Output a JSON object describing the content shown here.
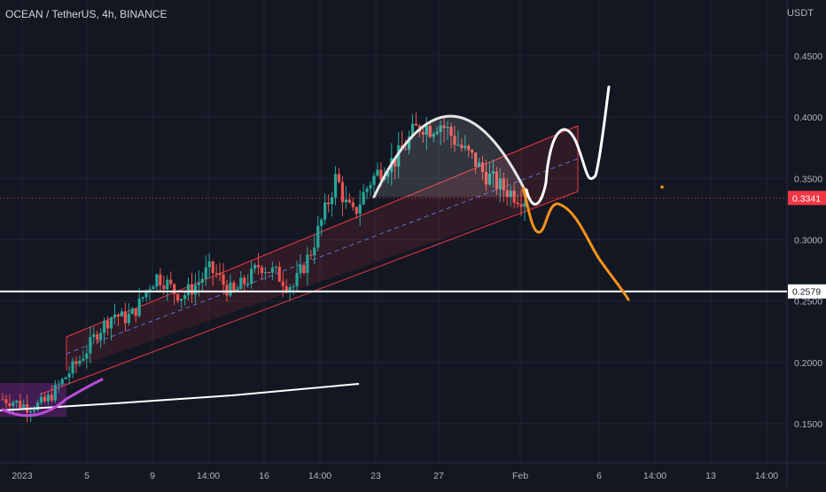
{
  "header": {
    "title": "OCEAN / TetherUS, 4h, BINANCE",
    "unit": "USDT"
  },
  "colors": {
    "background": "#131722",
    "grid": "#1f2433",
    "up_candle": "#26a69a",
    "down_candle": "#ef5350",
    "channel": "#f23645",
    "channel_mid": "#5b6ee1",
    "projection_bull": "#ffffff",
    "projection_bear": "#f7931a",
    "price_tag": "#f23645",
    "support_line": "#ffffff"
  },
  "chart_data": {
    "type": "candlestick",
    "symbol": "OCEAN / TetherUS",
    "interval": "4h",
    "exchange": "BINANCE",
    "ylim": [
      0.138,
      0.46
    ],
    "y_ticks": [
      "0.4500",
      "0.4000",
      "0.3500",
      "0.3000",
      "0.2500",
      "0.2000",
      "0.1500"
    ],
    "x_ticks": [
      "2023",
      "5",
      "9",
      "14:00",
      "16",
      "14:00",
      "23",
      "27",
      "Feb",
      "6",
      "14:00",
      "13",
      "14:00"
    ],
    "grid": true,
    "last_price": "0.3341",
    "support_level": "0.2579",
    "trend_path": [
      0.17,
      0.169,
      0.166,
      0.164,
      0.165,
      0.168,
      0.176,
      0.185,
      0.194,
      0.202,
      0.212,
      0.224,
      0.232,
      0.24,
      0.236,
      0.238,
      0.248,
      0.262,
      0.27,
      0.266,
      0.258,
      0.254,
      0.26,
      0.266,
      0.276,
      0.272,
      0.262,
      0.256,
      0.264,
      0.27,
      0.28,
      0.276,
      0.272,
      0.266,
      0.262,
      0.276,
      0.29,
      0.31,
      0.33,
      0.352,
      0.33,
      0.32,
      0.335,
      0.348,
      0.356,
      0.362,
      0.366,
      0.376,
      0.388,
      0.394,
      0.391,
      0.396,
      0.389,
      0.38,
      0.372,
      0.366,
      0.356,
      0.35,
      0.344,
      0.34,
      0.336,
      0.334
    ],
    "annotations": [
      {
        "label": "ascending channel"
      },
      {
        "label": "rounded top arc"
      },
      {
        "label": "bullish projection"
      },
      {
        "label": "bearish projection"
      },
      {
        "label": "horizontal support"
      },
      {
        "label": "rising trendline"
      }
    ]
  }
}
